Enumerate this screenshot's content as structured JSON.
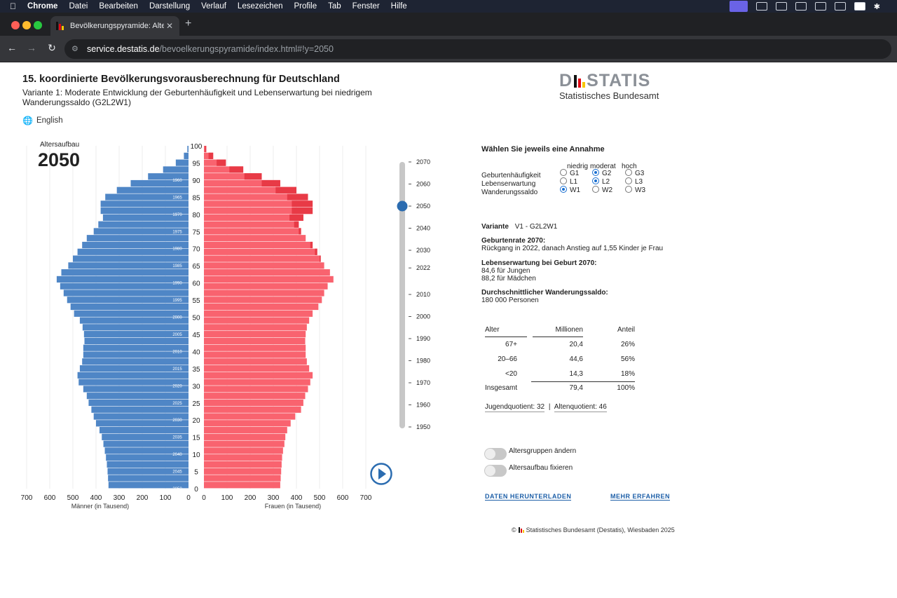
{
  "menubar": {
    "app": "Chrome",
    "items": [
      "Datei",
      "Bearbeiten",
      "Darstellung",
      "Verlauf",
      "Lesezeichen",
      "Profile",
      "Tab",
      "Fenster",
      "Hilfe"
    ],
    "status_icons": [
      "screen-icon",
      "extension-icon",
      "cast-icon",
      "display-icon",
      "html5-icon",
      "windows-icon",
      "keyboard-a-icon",
      "bluetooth-icon"
    ]
  },
  "browser": {
    "tab_title": "Bevölkerungspyramide: Alters",
    "url_host": "service.destatis.de",
    "url_path": "/bevoelkerungspyramide/index.html#!y=2050"
  },
  "page": {
    "title": "15. koordinierte Bevölkerungsvorausberechnung für Deutschland",
    "subtitle": "Variante 1: Moderate Entwicklung der Geburtenhäufigkeit und Lebenserwartung bei niedrigem Wanderungssaldo (G2L2W1)",
    "language_link": "English",
    "logo_word_left": "D",
    "logo_word_right": "STATIS",
    "logo_sub": "Statistisches Bundesamt"
  },
  "pyramid": {
    "caption": "Altersaufbau",
    "year": "2050",
    "x_ticks_left": [
      "700",
      "600",
      "500",
      "400",
      "300",
      "200",
      "100",
      "0"
    ],
    "x_ticks_right": [
      "0",
      "100",
      "200",
      "300",
      "400",
      "500",
      "600",
      "700"
    ],
    "age_ticks": [
      "100",
      "95",
      "90",
      "85",
      "80",
      "75",
      "70",
      "65",
      "60",
      "55",
      "50",
      "45",
      "40",
      "35",
      "30",
      "25",
      "20",
      "15",
      "10",
      "5",
      "0"
    ],
    "birth_year_labels": [
      "1960",
      "1965",
      "1970",
      "1975",
      "1980",
      "1985",
      "1990",
      "1995",
      "2000",
      "2005",
      "2010",
      "2015",
      "2020",
      "2025",
      "2030",
      "2035",
      "2040",
      "2045",
      "2050"
    ],
    "male_label": "Männer (in Tausend)",
    "female_label": "Frauen (in Tausend)",
    "timeline_years": [
      "2070",
      "2060",
      "2050",
      "2040",
      "2030",
      "2022",
      "2010",
      "2000",
      "1990",
      "1980",
      "1970",
      "1960",
      "1950"
    ],
    "selected_year": "2050",
    "colors": {
      "male": "#4f86c6",
      "female": "#f9636f",
      "female_dark": "#e83a46",
      "slider": "#2b6cb0"
    }
  },
  "chart_data": {
    "type": "bar",
    "title": "Altersaufbau 2050",
    "ages": [
      0,
      2,
      4,
      6,
      8,
      10,
      12,
      14,
      16,
      18,
      20,
      22,
      24,
      26,
      28,
      30,
      32,
      34,
      36,
      38,
      40,
      42,
      44,
      46,
      48,
      50,
      52,
      54,
      56,
      58,
      60,
      62,
      64,
      66,
      68,
      70,
      72,
      74,
      76,
      78,
      80,
      82,
      84,
      86,
      88,
      90,
      92,
      94,
      96,
      98
    ],
    "series": [
      {
        "name": "Männer (in Tausend)",
        "values": [
          346,
          348,
          350,
          353,
          357,
          362,
          368,
          375,
          385,
          400,
          410,
          420,
          432,
          440,
          455,
          475,
          480,
          470,
          460,
          455,
          455,
          450,
          452,
          458,
          470,
          495,
          510,
          525,
          540,
          555,
          570,
          550,
          520,
          500,
          480,
          460,
          440,
          410,
          390,
          370,
          380,
          380,
          360,
          310,
          250,
          175,
          110,
          55,
          20,
          5
        ]
      },
      {
        "name": "Frauen (in Tausend)",
        "values": [
          330,
          332,
          334,
          336,
          338,
          342,
          348,
          352,
          360,
          375,
          395,
          420,
          430,
          438,
          450,
          460,
          470,
          455,
          445,
          440,
          440,
          438,
          440,
          445,
          455,
          470,
          495,
          510,
          520,
          535,
          560,
          545,
          520,
          505,
          490,
          470,
          440,
          420,
          410,
          430,
          470,
          470,
          450,
          400,
          330,
          250,
          170,
          95,
          40,
          10
        ]
      }
    ],
    "xlabel": "",
    "xlim": [
      -700,
      700
    ],
    "ylim": [
      0,
      100
    ]
  },
  "controls": {
    "heading": "Wählen Sie jeweils eine Annahme",
    "col_headers": [
      "niedrig",
      "moderat",
      "hoch"
    ],
    "rows": [
      {
        "label": "Geburtenhäufigkeit",
        "options": [
          "G1",
          "G2",
          "G3"
        ],
        "selected": "G2"
      },
      {
        "label": "Lebenserwartung",
        "options": [
          "L1",
          "L2",
          "L3"
        ],
        "selected": "L2"
      },
      {
        "label": "Wanderungssaldo",
        "options": [
          "W1",
          "W2",
          "W3"
        ],
        "selected": "W1"
      }
    ],
    "variant_label": "Variante",
    "variant_value": "V1 - G2L2W1",
    "birth_rate_title": "Geburtenrate 2070:",
    "birth_rate_text": "Rückgang in 2022, danach Anstieg auf 1,55 Kinder je Frau",
    "life_exp_title": "Lebenserwartung bei Geburt 2070:",
    "life_exp_boys": "84,6 für Jungen",
    "life_exp_girls": "88,2 für Mädchen",
    "migration_title": "Durchschnittlicher Wanderungssaldo:",
    "migration_text": "180 000 Personen",
    "table_headers": [
      "Alter",
      "Millionen",
      "Anteil"
    ],
    "table_rows": [
      {
        "age": "67+",
        "mio": "20,4",
        "share": "26%"
      },
      {
        "age": "20–66",
        "mio": "44,6",
        "share": "56%"
      },
      {
        "age": "<20",
        "mio": "14,3",
        "share": "18%"
      }
    ],
    "total": {
      "age": "Insgesamt",
      "mio": "79,4",
      "share": "100%"
    },
    "youth_quotient": "Jugendquotient: 32",
    "separator": "|",
    "old_quotient": "Altenquotient: 46",
    "toggle_groups": "Altersgruppen ändern",
    "toggle_fix": "Altersaufbau fixieren",
    "download": "DATEN HERUNTERLADEN",
    "more": "MEHR ERFAHREN",
    "footer_symbol": "©",
    "footer": "Statistisches Bundesamt (Destatis), Wiesbaden 2025"
  }
}
